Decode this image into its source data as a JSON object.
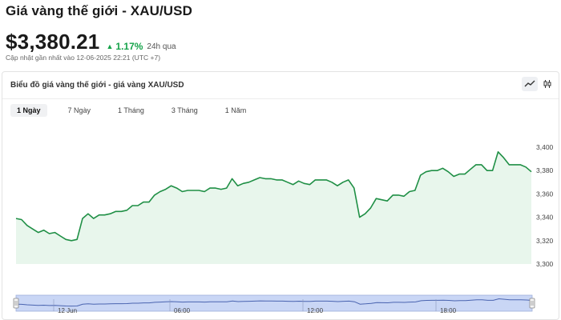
{
  "header": {
    "title": "Giá vàng thế giới - XAU/USD",
    "price": "$3,380.21",
    "change_pct": "1.17%",
    "change_period": "24h qua",
    "updated": "Cập nhật gần nhất vào 12-06-2025 22:21 (UTC +7)"
  },
  "panel": {
    "title": "Biểu đồ giá vàng thế giới - giá vàng XAU/USD",
    "tabs": [
      "1 Ngày",
      "7 Ngày",
      "1 Tháng",
      "3 Tháng",
      "1 Năm"
    ],
    "active_tab": "1 Ngày",
    "views": [
      "line-chart-icon",
      "candlestick-icon"
    ]
  },
  "colors": {
    "accent": "#16a34a",
    "line": "#1f8f45",
    "area": "#e8f6ec",
    "navigator_fill": "#c9d6f5",
    "navigator_line": "#4a64b0"
  },
  "chart_data": {
    "type": "area",
    "title": "",
    "xlabel": "",
    "ylabel": "",
    "ylim": [
      3300,
      3400
    ],
    "yticks": [
      3300,
      3320,
      3340,
      3360,
      3380,
      3400
    ],
    "y_tick_labels": [
      "3,300",
      "3,320",
      "3,340",
      "3,360",
      "3,380",
      "3,400"
    ],
    "y_axis_side": "right",
    "grid": false,
    "navigator_labels": [
      "12 Jun",
      "06:00",
      "12:00",
      "18:00"
    ],
    "values": [
      3339,
      3338,
      3333,
      3330,
      3327,
      3329,
      3326,
      3327,
      3324,
      3321,
      3320,
      3321,
      3339,
      3343,
      3339,
      3342,
      3342,
      3343,
      3345,
      3345,
      3346,
      3350,
      3350,
      3353,
      3353,
      3359,
      3362,
      3364,
      3367,
      3365,
      3362,
      3363,
      3363,
      3363,
      3362,
      3365,
      3365,
      3364,
      3365,
      3373,
      3367,
      3369,
      3370,
      3372,
      3374,
      3373,
      3373,
      3372,
      3372,
      3370,
      3368,
      3371,
      3369,
      3368,
      3372,
      3372,
      3372,
      3370,
      3367,
      3370,
      3372,
      3365,
      3340,
      3343,
      3348,
      3356,
      3355,
      3354,
      3359,
      3359,
      3358,
      3362,
      3363,
      3376,
      3379,
      3380,
      3380,
      3382,
      3379,
      3375,
      3377,
      3377,
      3381,
      3385,
      3385,
      3380,
      3380,
      3396,
      3391,
      3385,
      3385,
      3385,
      3383,
      3379
    ]
  }
}
